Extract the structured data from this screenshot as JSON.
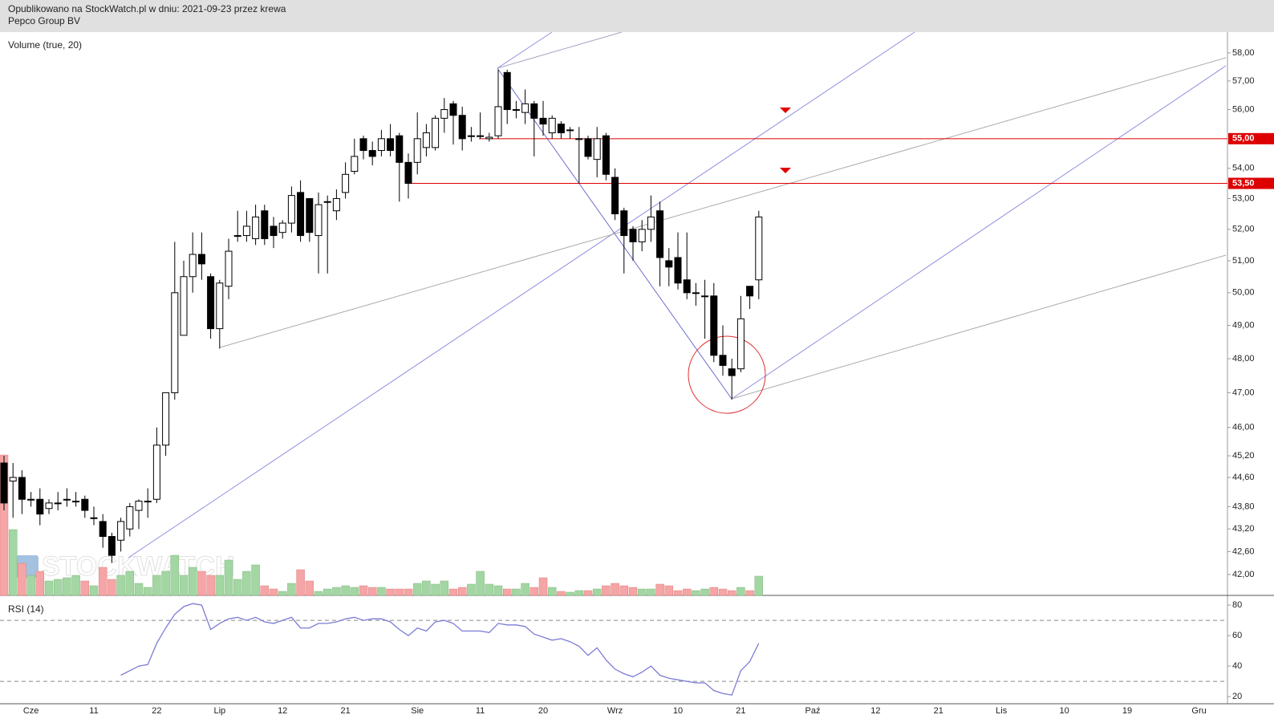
{
  "header": {
    "published": "Opublikowano na StockWatch.pl w dniu: 2021-09-23 przez krewa",
    "name": "Pepco Group BV"
  },
  "chart_data": [
    {
      "type": "candlestick",
      "log_scale": true,
      "up_color": "#ffffff",
      "down_color": "#000000",
      "watermark": "STOCKWATCH",
      "categories": [
        null,
        null,
        null,
        "Cze",
        null,
        null,
        null,
        null,
        null,
        null,
        "11",
        null,
        null,
        null,
        null,
        null,
        null,
        "22",
        null,
        null,
        null,
        null,
        null,
        null,
        "Lip",
        null,
        null,
        null,
        null,
        null,
        null,
        "12",
        null,
        null,
        null,
        null,
        null,
        null,
        "21",
        null,
        null,
        null,
        null,
        null,
        null,
        null,
        "Sie",
        null,
        null,
        null,
        null,
        null,
        null,
        "11",
        null,
        null,
        null,
        null,
        null,
        null,
        "20",
        null,
        null,
        null,
        null,
        null,
        null,
        null,
        "Wrz",
        null,
        null,
        null,
        null,
        null,
        null,
        "10",
        null,
        null,
        null,
        null,
        null,
        null,
        "21",
        null,
        null,
        null,
        null,
        null,
        null,
        null,
        "Paź",
        null,
        null,
        null,
        null,
        null,
        null,
        "12",
        null,
        null,
        null,
        null,
        null,
        null,
        "21",
        null,
        null,
        null,
        null,
        null,
        null,
        "Lis",
        null,
        null,
        null,
        null,
        null,
        null,
        "10",
        null,
        null,
        null,
        null,
        null,
        null,
        "19",
        null,
        null,
        null,
        null,
        null,
        null,
        null,
        "Gru",
        null,
        null,
        null
      ],
      "open": [
        45.0,
        44.5,
        44.6,
        44.0,
        44.0,
        43.75,
        43.9,
        44.0,
        43.95,
        44.0,
        43.5,
        43.4,
        43.0,
        42.9,
        43.2,
        43.7,
        43.95,
        44.0,
        45.5,
        47.0,
        48.7,
        50.5,
        51.2,
        50.5,
        48.9,
        50.2,
        51.8,
        51.8,
        51.7,
        52.6,
        52.1,
        51.9,
        52.2,
        53.2,
        53.0,
        51.8,
        52.9,
        52.6,
        53.2,
        53.9,
        55.0,
        54.6,
        54.6,
        55.0,
        55.1,
        54.2,
        54.2,
        54.7,
        54.7,
        55.7,
        56.2,
        55.8,
        55.1,
        55.1,
        55.0,
        55.1,
        57.3,
        56.0,
        55.9,
        56.2,
        55.7,
        55.2,
        55.5,
        55.3,
        55.0,
        55.0,
        54.3,
        55.1,
        53.7,
        52.6,
        52.0,
        51.6,
        52.0,
        52.6,
        51.0,
        51.1,
        50.4,
        50.0,
        49.9,
        49.9,
        48.1,
        47.7,
        47.7,
        50.2,
        50.4,
        null,
        null,
        null,
        null,
        null,
        null,
        null,
        null,
        null,
        null,
        null,
        null,
        null,
        null,
        null,
        null,
        null,
        null,
        null,
        null,
        null,
        null,
        null,
        null,
        null,
        null,
        null,
        null,
        null,
        null,
        null,
        null,
        null,
        null,
        null,
        null,
        null,
        null,
        null,
        null,
        null,
        null,
        null,
        null,
        null,
        null,
        null,
        null,
        null,
        null,
        null,
        null
      ],
      "high": [
        45.2,
        45.0,
        44.8,
        44.2,
        44.3,
        44.0,
        44.2,
        44.3,
        44.2,
        44.1,
        43.8,
        43.6,
        43.1,
        43.5,
        43.9,
        44.0,
        44.3,
        46.0,
        47.0,
        51.6,
        51.0,
        51.9,
        51.9,
        50.6,
        50.4,
        51.7,
        52.6,
        52.6,
        52.8,
        52.8,
        52.4,
        52.3,
        53.4,
        53.6,
        53.0,
        53.2,
        53.1,
        53.3,
        54.2,
        55.0,
        55.1,
        54.9,
        55.3,
        55.5,
        55.2,
        54.5,
        55.9,
        55.5,
        55.8,
        56.4,
        56.3,
        56.1,
        55.4,
        55.9,
        55.2,
        57.4,
        57.4,
        56.3,
        56.7,
        56.3,
        56.3,
        55.8,
        55.6,
        55.4,
        55.4,
        55.1,
        55.4,
        55.2,
        54.0,
        52.7,
        52.1,
        52.3,
        53.1,
        52.9,
        51.4,
        51.9,
        51.9,
        50.3,
        50.4,
        50.3,
        49.0,
        48.0,
        49.9,
        50.2,
        52.6,
        null,
        null,
        null,
        null,
        null,
        null,
        null,
        null,
        null,
        null,
        null,
        null,
        null,
        null,
        null,
        null,
        null,
        null,
        null,
        null,
        null,
        null,
        null,
        null,
        null,
        null,
        null,
        null,
        null,
        null,
        null,
        null,
        null,
        null,
        null,
        null,
        null,
        null,
        null,
        null,
        null,
        null,
        null,
        null,
        null,
        null,
        null,
        null,
        null,
        null,
        null,
        null
      ],
      "low": [
        43.7,
        43.5,
        43.6,
        43.8,
        43.3,
        43.6,
        43.7,
        43.8,
        43.8,
        43.5,
        43.3,
        42.7,
        42.3,
        42.6,
        43.0,
        43.2,
        43.5,
        43.9,
        45.2,
        46.8,
        48.7,
        50.0,
        50.4,
        48.6,
        48.3,
        49.8,
        51.6,
        51.6,
        51.5,
        51.5,
        51.4,
        51.7,
        51.9,
        51.6,
        51.6,
        50.6,
        50.6,
        52.3,
        53.0,
        53.8,
        54.3,
        54.1,
        54.4,
        54.4,
        52.9,
        53.0,
        53.8,
        54.4,
        54.6,
        55.2,
        54.8,
        54.6,
        54.9,
        55.0,
        54.9,
        55.0,
        55.5,
        55.7,
        55.5,
        54.4,
        55.1,
        55.0,
        55.0,
        55.0,
        53.5,
        54.3,
        53.7,
        53.6,
        52.3,
        50.6,
        51.0,
        51.3,
        51.6,
        50.2,
        50.2,
        50.1,
        49.8,
        49.6,
        48.6,
        47.9,
        47.5,
        46.8,
        47.6,
        49.5,
        49.8,
        null,
        null,
        null,
        null,
        null,
        null,
        null,
        null,
        null,
        null,
        null,
        null,
        null,
        null,
        null,
        null,
        null,
        null,
        null,
        null,
        null,
        null,
        null,
        null,
        null,
        null,
        null,
        null,
        null,
        null,
        null,
        null,
        null,
        null,
        null,
        null,
        null,
        null,
        null,
        null,
        null,
        null,
        null,
        null,
        null,
        null,
        null,
        null,
        null,
        null,
        null,
        null
      ],
      "close": [
        43.9,
        44.6,
        44.0,
        44.0,
        43.6,
        43.9,
        43.9,
        44.0,
        43.95,
        43.7,
        43.5,
        43.0,
        42.5,
        43.4,
        43.8,
        43.95,
        43.95,
        45.5,
        47.0,
        50.0,
        50.5,
        51.2,
        50.9,
        48.9,
        50.3,
        51.3,
        51.8,
        52.1,
        52.4,
        51.7,
        51.8,
        52.2,
        53.1,
        51.8,
        51.9,
        52.8,
        52.9,
        53.0,
        53.8,
        54.4,
        54.6,
        54.4,
        55.0,
        54.6,
        54.2,
        53.5,
        55.0,
        55.2,
        55.7,
        56.0,
        55.8,
        55.0,
        55.1,
        55.1,
        55.05,
        56.1,
        56.0,
        56.0,
        56.2,
        55.7,
        55.5,
        55.7,
        55.2,
        55.3,
        55.0,
        54.4,
        55.0,
        53.8,
        52.5,
        51.8,
        51.6,
        52.0,
        52.4,
        51.1,
        50.8,
        50.3,
        50.0,
        50.0,
        49.9,
        48.1,
        47.8,
        47.5,
        49.2,
        49.9,
        52.4,
        null,
        null,
        null,
        null,
        null,
        null,
        null,
        null,
        null,
        null,
        null,
        null,
        null,
        null,
        null,
        null,
        null,
        null,
        null,
        null,
        null,
        null,
        null,
        null,
        null,
        null,
        null,
        null,
        null,
        null,
        null,
        null,
        null,
        null,
        null,
        null,
        null,
        null,
        null,
        null,
        null,
        null,
        null,
        null,
        null,
        null,
        null,
        null,
        null,
        null,
        null,
        null
      ],
      "ylim": [
        41.46,
        58.75
      ],
      "yticks": [
        {
          "value": 58,
          "label": "58,00"
        },
        {
          "value": 57,
          "label": "57,00"
        },
        {
          "value": 56,
          "label": "56,00"
        },
        {
          "value": 54,
          "label": "54,00"
        },
        {
          "value": 53,
          "label": "53,00"
        },
        {
          "value": 52,
          "label": "52,00"
        },
        {
          "value": 51,
          "label": "51,00"
        },
        {
          "value": 50,
          "label": "50,00"
        },
        {
          "value": 49,
          "label": "49,00"
        },
        {
          "value": 48,
          "label": "48,00"
        },
        {
          "value": 47,
          "label": "47,00"
        },
        {
          "value": 46,
          "label": "46,00"
        },
        {
          "value": 45.2,
          "label": "45,20"
        },
        {
          "value": 44.6,
          "label": "44,60"
        },
        {
          "value": 43.8,
          "label": "43,80"
        },
        {
          "value": 43.2,
          "label": "43,20"
        },
        {
          "value": 42.6,
          "label": "42,60"
        },
        {
          "value": 42,
          "label": "42,00"
        }
      ],
      "levels": [
        {
          "value": 55,
          "label": "55,00",
          "color": "#dd0000"
        },
        {
          "value": 53.5,
          "label": "53,50",
          "color": "#dd0000"
        }
      ],
      "volume": {
        "label": "Volume (true, 20)",
        "up_color": "#a3d6a3",
        "down_color": "#f5a5a5",
        "values": [
          175,
          82,
          40,
          25,
          30,
          18,
          20,
          22,
          25,
          18,
          12,
          35,
          20,
          25,
          30,
          15,
          10,
          25,
          30,
          50,
          25,
          35,
          30,
          25,
          25,
          44,
          20,
          30,
          38,
          12,
          8,
          5,
          15,
          32,
          18,
          5,
          8,
          10,
          12,
          10,
          12,
          10,
          10,
          8,
          8,
          8,
          15,
          18,
          14,
          18,
          8,
          10,
          14,
          30,
          14,
          12,
          8,
          8,
          15,
          10,
          22,
          10,
          5,
          4,
          6,
          6,
          8,
          12,
          15,
          12,
          10,
          8,
          8,
          14,
          12,
          6,
          8,
          6,
          8,
          10,
          8,
          6,
          10,
          6,
          24,
          null,
          null,
          null,
          null,
          null,
          null,
          null,
          null,
          null,
          null,
          null,
          null,
          null,
          null,
          null,
          null,
          null,
          null,
          null,
          null,
          null,
          null,
          null,
          null,
          null,
          null,
          null,
          null,
          null,
          null,
          null,
          null,
          null,
          null,
          null,
          null,
          null,
          null,
          null,
          null,
          null,
          null,
          null,
          null,
          null,
          null,
          null,
          null,
          null,
          null,
          null,
          null
        ]
      }
    },
    {
      "type": "line",
      "label": "RSI (14)",
      "color": "#7b7bd6",
      "values": [
        null,
        null,
        null,
        null,
        null,
        null,
        null,
        null,
        null,
        null,
        null,
        null,
        null,
        34,
        37,
        40,
        41,
        55,
        65,
        74,
        79,
        81,
        80,
        64,
        68,
        71,
        72,
        70,
        72,
        69,
        68,
        70,
        72,
        65,
        65,
        68,
        68,
        69,
        71,
        72,
        70,
        71,
        71,
        69,
        64,
        60,
        65,
        63,
        69,
        70,
        68,
        63,
        63,
        63,
        62,
        68,
        67,
        67,
        66,
        61,
        59,
        57,
        58,
        56,
        53,
        47,
        52,
        44,
        38,
        35,
        33,
        36,
        40,
        34,
        32,
        31,
        30,
        29,
        29,
        24,
        22,
        21,
        37,
        43,
        55,
        null,
        null,
        null,
        null,
        null,
        null,
        null,
        null,
        null,
        null,
        null,
        null,
        null,
        null,
        null,
        null,
        null,
        null,
        null,
        null,
        null,
        null,
        null,
        null,
        null,
        null,
        null,
        null,
        null,
        null,
        null,
        null,
        null,
        null,
        null,
        null,
        null,
        null,
        null,
        null,
        null,
        null,
        null,
        null,
        null,
        null,
        null,
        null,
        null,
        null,
        null,
        null
      ],
      "ylim": [
        15.3,
        85.3
      ],
      "yticks": [
        20,
        40,
        60,
        80
      ],
      "levels": [
        70,
        30
      ]
    }
  ]
}
